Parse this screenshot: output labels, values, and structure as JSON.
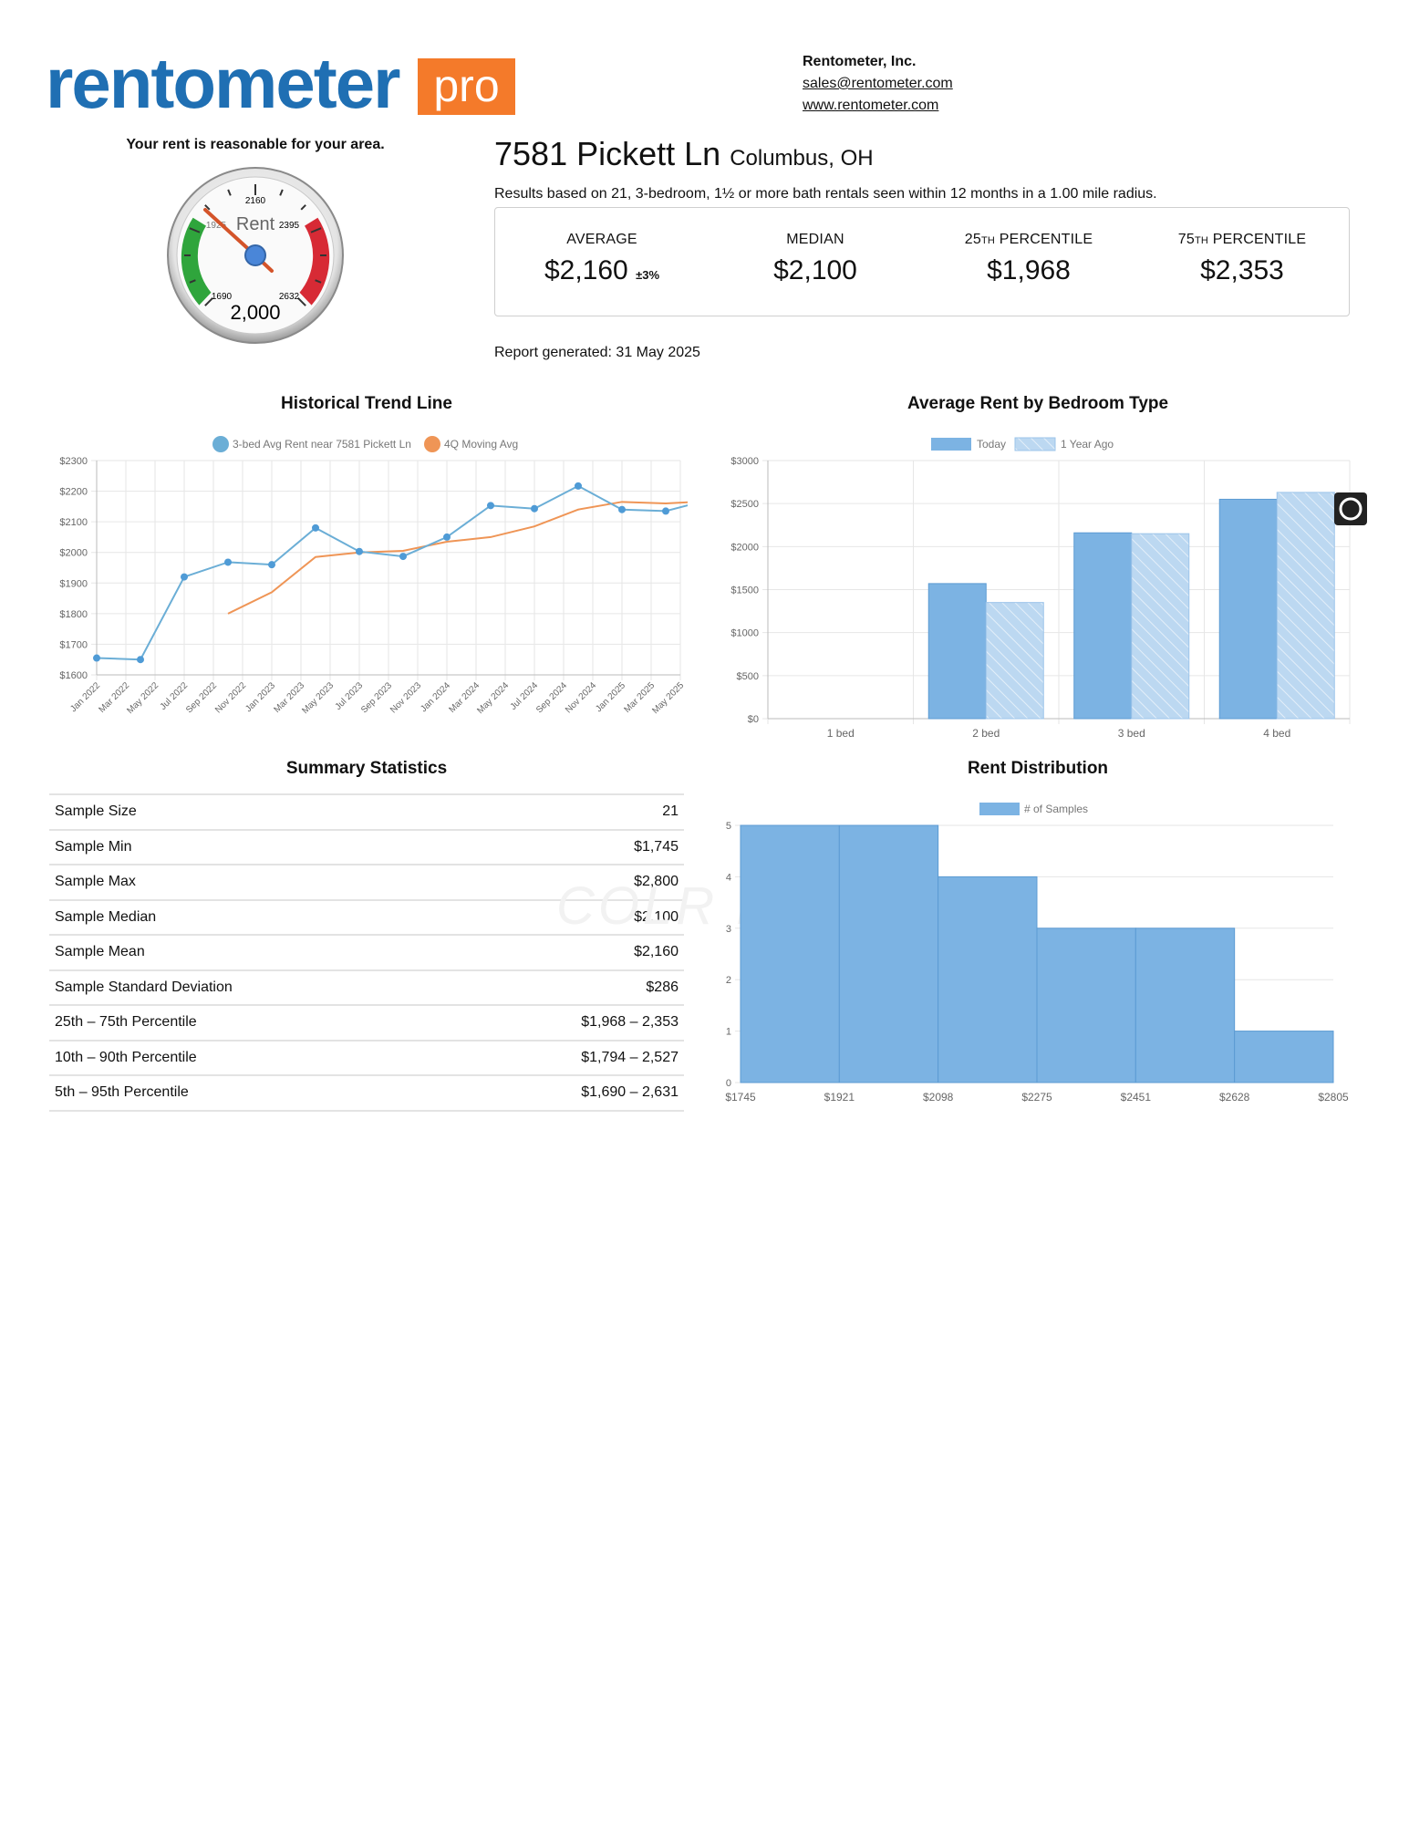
{
  "brand": {
    "word": "rentometer",
    "pro": "pro",
    "blue": "#1f6fb3",
    "orange": "#f47a2a"
  },
  "company": {
    "name": "Rentometer, Inc.",
    "email": "sales@rentometer.com",
    "website": "www.rentometer.com"
  },
  "gauge": {
    "verdict": "Your rent is reasonable for your area.",
    "word": "Rent",
    "value_label": "2,000",
    "value": 2000,
    "ticks": {
      "top": "2160",
      "upper_left": "1925",
      "upper_right": "2395",
      "lower_left": "1690",
      "lower_right": "2632"
    },
    "colors": {
      "low": "#2fa53c",
      "high": "#d72a35",
      "needle": "#e0502a",
      "hub": "#4a86d8"
    }
  },
  "property": {
    "address": "7581 Pickett Ln",
    "city": "Columbus, OH",
    "basis": "Results based on 21, 3-bedroom, 1½ or more bath rentals seen within 12 months in a 1.00 mile radius."
  },
  "stats": {
    "average_label": "AVERAGE",
    "average": "$2,160",
    "average_pm": "±3%",
    "median_label": "MEDIAN",
    "median": "$2,100",
    "p25_num": "25",
    "p25_suffix": "TH",
    "p25_label": "PERCENTILE",
    "p25": "$1,968",
    "p75_num": "75",
    "p75_suffix": "TH",
    "p75_label": "PERCENTILE",
    "p75": "$2,353"
  },
  "report_generated": "Report generated: 31 May 2025",
  "sections": {
    "trend": "Historical Trend Line",
    "bedroom": "Average Rent by Bedroom Type",
    "summary": "Summary Statistics",
    "distribution": "Rent Distribution"
  },
  "summary_rows": [
    {
      "label": "Sample Size",
      "value": "21"
    },
    {
      "label": "Sample Min",
      "value": "$1,745"
    },
    {
      "label": "Sample Max",
      "value": "$2,800"
    },
    {
      "label": "Sample Median",
      "value": "$2,100"
    },
    {
      "label": "Sample Mean",
      "value": "$2,160"
    },
    {
      "label": "Sample Standard Deviation",
      "value": "$286"
    },
    {
      "label": "25th – 75th Percentile",
      "value": "$1,968 – 2,353"
    },
    {
      "label": "10th – 90th Percentile",
      "value": "$1,794 – 2,527"
    },
    {
      "label": "5th – 95th Percentile",
      "value": "$1,690 – 2,631"
    }
  ],
  "watermark": "COLR MLS",
  "chart_data": [
    {
      "type": "line",
      "title": "Historical Trend Line",
      "x": [
        "Jan 2022",
        "Mar 2022",
        "May 2022",
        "Jul 2022",
        "Sep 2022",
        "Nov 2022",
        "Jan 2023",
        "Mar 2023",
        "May 2023",
        "Jul 2023",
        "Sep 2023",
        "Nov 2023",
        "Jan 2024",
        "Mar 2024",
        "May 2024",
        "Jul 2024",
        "Sep 2024",
        "Nov 2024",
        "Jan 2025",
        "Mar 2025",
        "May 2025"
      ],
      "ylim": [
        1600,
        2300
      ],
      "yticks": [
        "$1600",
        "$1700",
        "$1800",
        "$1900",
        "$2000",
        "$2100",
        "$2200",
        "$2300"
      ],
      "grid": true,
      "legend_position": "top",
      "series": [
        {
          "name": "3-bed Avg Rent near 7581 Pickett Ln",
          "color": "#6baed6",
          "points": [
            [
              0,
              1655
            ],
            [
              1.5,
              1650
            ],
            [
              3,
              1920
            ],
            [
              4.5,
              1968
            ],
            [
              6,
              1960
            ],
            [
              7.5,
              2080
            ],
            [
              9,
              2003
            ],
            [
              10.5,
              1987
            ],
            [
              12,
              2050
            ],
            [
              13.5,
              2153
            ],
            [
              15,
              2143
            ],
            [
              16.5,
              2217
            ],
            [
              18,
              2140
            ],
            [
              19.5,
              2135
            ],
            [
              20.5,
              2160
            ]
          ]
        },
        {
          "name": "4Q Moving Avg",
          "color": "#ef9556",
          "points": [
            [
              4.5,
              1800
            ],
            [
              6,
              1870
            ],
            [
              7.5,
              1985
            ],
            [
              9,
              2000
            ],
            [
              10.5,
              2005
            ],
            [
              12,
              2035
            ],
            [
              13.5,
              2050
            ],
            [
              15,
              2085
            ],
            [
              16.5,
              2140
            ],
            [
              18,
              2165
            ],
            [
              19.5,
              2160
            ],
            [
              20.5,
              2165
            ]
          ]
        }
      ]
    },
    {
      "type": "bar",
      "title": "Average Rent by Bedroom Type",
      "categories": [
        "1 bed",
        "2 bed",
        "3 bed",
        "4 bed"
      ],
      "ylim": [
        0,
        3000
      ],
      "yticks": [
        "$0",
        "$500",
        "$1000",
        "$1500",
        "$2000",
        "$2500",
        "$3000"
      ],
      "legend_position": "top",
      "series": [
        {
          "name": "Today",
          "color": "#7cb3e3",
          "values": [
            0,
            1570,
            2160,
            2550
          ]
        },
        {
          "name": "1 Year Ago",
          "color": "#bcd8f1",
          "values": [
            0,
            1350,
            2150,
            2630
          ]
        }
      ]
    },
    {
      "type": "bar",
      "title": "Rent Distribution",
      "bin_edges": [
        "$1745",
        "$1921",
        "$2098",
        "$2275",
        "$2451",
        "$2628",
        "$2805"
      ],
      "ylim": [
        0,
        5
      ],
      "yticks": [
        "0",
        "1",
        "2",
        "3",
        "4",
        "5"
      ],
      "legend_position": "top",
      "series": [
        {
          "name": "# of Samples",
          "color": "#7cb3e3",
          "values": [
            5,
            5,
            4,
            3,
            3,
            1
          ]
        }
      ]
    }
  ]
}
